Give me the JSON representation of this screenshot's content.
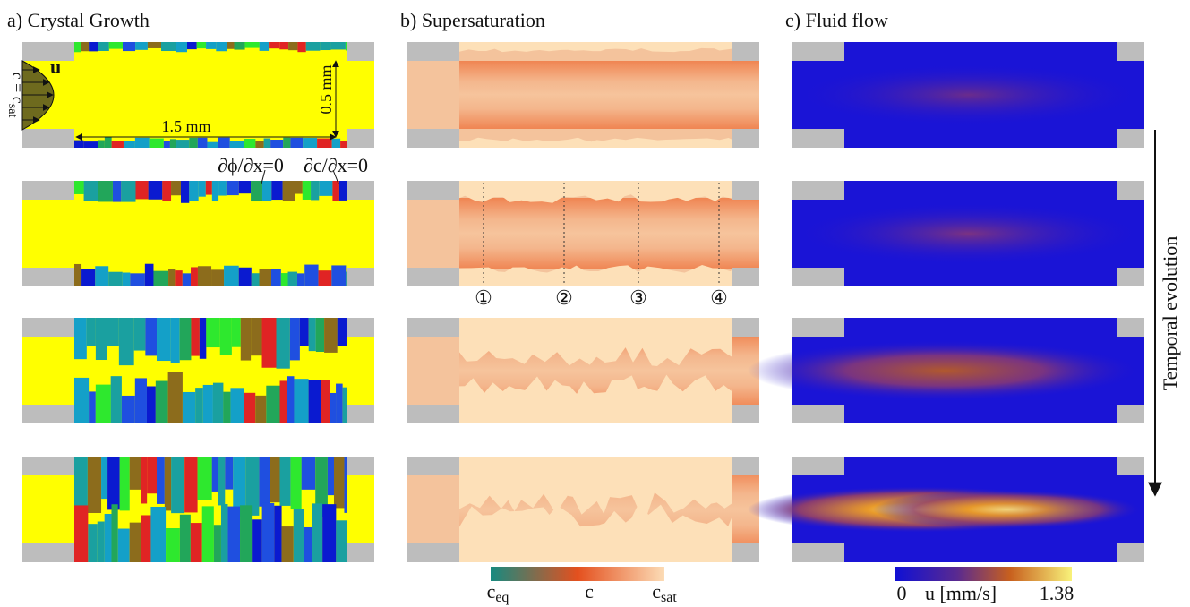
{
  "panels": [
    {
      "title": "a) Crystal Growth"
    },
    {
      "title": "b) Supersaturation"
    },
    {
      "title": "c) Fluid flow"
    }
  ],
  "annotations": {
    "inlet_velocity": "u",
    "inlet_concentration": {
      "base": "c = c",
      "sub": "sat"
    },
    "length": "1.5 mm",
    "height": "0.5 mm",
    "boundary_phi": "∂ϕ/∂x=0",
    "boundary_c": "∂c/∂x=0",
    "probes": [
      "①",
      "②",
      "③",
      "④"
    ],
    "time_arrow": "Temporal evolution"
  },
  "colorbars": {
    "concentration": {
      "min": {
        "base": "c",
        "sub": "eq"
      },
      "mid": "c",
      "max": {
        "base": "c",
        "sub": "sat"
      }
    },
    "velocity": {
      "min": "0",
      "mid": "u [mm/s]",
      "max": "1.38"
    }
  }
}
